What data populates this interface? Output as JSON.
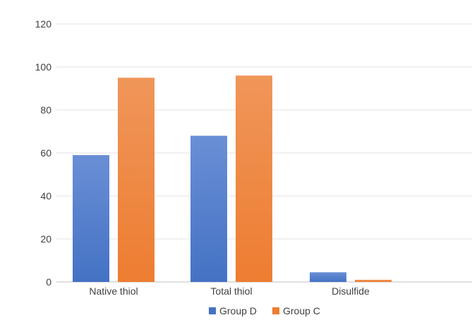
{
  "chart_data": {
    "type": "bar",
    "categories": [
      "Native thiol",
      "Total thiol",
      "Disulfide"
    ],
    "series": [
      {
        "name": "Group D",
        "values": [
          59,
          68,
          4.5
        ],
        "color": "#4472C4"
      },
      {
        "name": "Group C",
        "values": [
          95,
          96,
          1
        ],
        "color": "#ED7D31"
      }
    ],
    "ylim": [
      0,
      120
    ],
    "yticks": [
      0,
      20,
      40,
      60,
      80,
      100,
      120
    ],
    "grid": true,
    "legend_position": "bottom"
  }
}
